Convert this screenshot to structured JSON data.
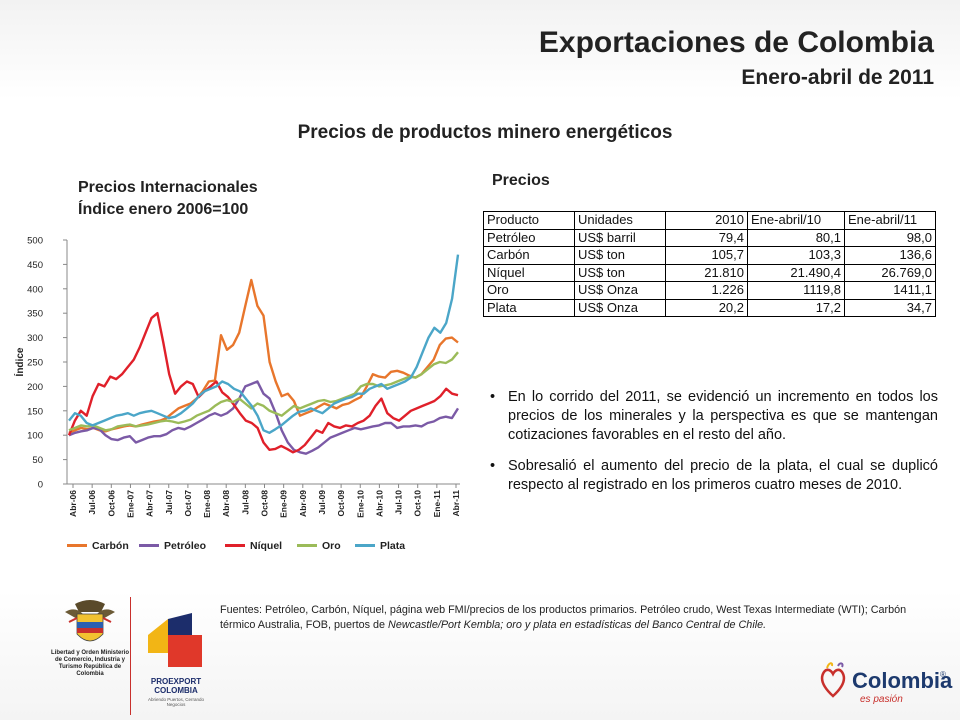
{
  "header": {
    "title": "Exportaciones de Colombia",
    "subtitle": "Enero-abril de 2011",
    "section_title": "Precios de productos minero energéticos"
  },
  "chart_data": {
    "type": "line",
    "title": "Precios Internacionales\nÍndice enero 2006=100",
    "title_lines": [
      "Precios Internacionales",
      "Índice enero 2006=100"
    ],
    "ylabel": "Índice",
    "xlabel": "",
    "ylim": [
      0,
      500
    ],
    "yticks": [
      0,
      50,
      100,
      150,
      200,
      250,
      300,
      350,
      400,
      450,
      500
    ],
    "x_tick_labels": [
      "Abr-06",
      "Jul-06",
      "Oct-06",
      "Ene-07",
      "Abr-07",
      "Jul-07",
      "Oct-07",
      "Ene-08",
      "Abr-08",
      "Jul-08",
      "Oct-08",
      "Ene-09",
      "Abr-09",
      "Jul-09",
      "Oct-09",
      "Ene-10",
      "Abr-10",
      "Jul-10",
      "Oct-10",
      "Ene-11",
      "Abr-11"
    ],
    "legend_position": "bottom",
    "grid": false,
    "series": [
      {
        "name": "Carbón",
        "color": "#e8762c",
        "values": [
          105,
          110,
          115,
          112,
          115,
          110,
          108,
          112,
          115,
          118,
          120,
          118,
          122,
          125,
          128,
          130,
          135,
          145,
          155,
          160,
          165,
          175,
          190,
          210,
          212,
          305,
          275,
          285,
          310,
          365,
          418,
          365,
          345,
          250,
          210,
          180,
          185,
          170,
          140,
          145,
          150,
          158,
          165,
          160,
          155,
          162,
          165,
          172,
          178,
          200,
          225,
          220,
          218,
          230,
          232,
          228,
          222,
          218,
          225,
          240,
          255,
          285,
          298,
          300,
          290
        ]
      },
      {
        "name": "Petróleo",
        "color": "#7b5aa6",
        "values": [
          100,
          105,
          108,
          110,
          115,
          112,
          100,
          92,
          90,
          95,
          98,
          85,
          90,
          95,
          98,
          98,
          102,
          110,
          115,
          112,
          118,
          125,
          132,
          140,
          145,
          140,
          145,
          155,
          175,
          200,
          205,
          210,
          185,
          175,
          145,
          110,
          85,
          70,
          65,
          62,
          68,
          75,
          85,
          95,
          100,
          105,
          110,
          115,
          112,
          115,
          118,
          120,
          125,
          125,
          115,
          118,
          118,
          120,
          118,
          125,
          128,
          135,
          138,
          135,
          155
        ]
      },
      {
        "name": "Níquel",
        "color": "#e0202a",
        "values": [
          100,
          130,
          150,
          140,
          180,
          205,
          200,
          220,
          215,
          225,
          240,
          255,
          280,
          310,
          340,
          350,
          290,
          225,
          185,
          200,
          210,
          205,
          178,
          190,
          200,
          210,
          188,
          178,
          162,
          145,
          130,
          125,
          115,
          85,
          70,
          72,
          78,
          72,
          65,
          70,
          80,
          95,
          110,
          105,
          125,
          118,
          115,
          120,
          118,
          125,
          130,
          140,
          160,
          175,
          145,
          135,
          130,
          140,
          150,
          155,
          160,
          165,
          170,
          180,
          195,
          185,
          182
        ]
      },
      {
        "name": "Oro",
        "color": "#9bbb59",
        "values": [
          110,
          115,
          120,
          118,
          120,
          115,
          110,
          112,
          118,
          120,
          122,
          118,
          120,
          122,
          125,
          128,
          130,
          128,
          125,
          128,
          132,
          140,
          145,
          150,
          160,
          168,
          172,
          168,
          175,
          165,
          155,
          165,
          160,
          150,
          145,
          140,
          150,
          160,
          155,
          160,
          165,
          170,
          172,
          168,
          170,
          175,
          180,
          185,
          200,
          205,
          205,
          200,
          202,
          205,
          210,
          215,
          220,
          218,
          225,
          235,
          245,
          250,
          248,
          255,
          270
        ]
      },
      {
        "name": "Plata",
        "color": "#4ba6c8",
        "values": [
          130,
          145,
          140,
          125,
          120,
          125,
          130,
          135,
          140,
          142,
          145,
          140,
          145,
          148,
          150,
          145,
          140,
          135,
          138,
          145,
          155,
          165,
          180,
          190,
          195,
          200,
          210,
          205,
          195,
          190,
          175,
          160,
          140,
          110,
          105,
          112,
          120,
          130,
          140,
          148,
          150,
          155,
          150,
          145,
          155,
          165,
          170,
          175,
          178,
          185,
          185,
          195,
          200,
          205,
          195,
          200,
          205,
          210,
          218,
          240,
          270,
          300,
          320,
          310,
          330,
          380,
          470
        ]
      }
    ]
  },
  "prices": {
    "title": "Precios",
    "headers": [
      "Producto",
      "Unidades",
      "2010",
      "Ene-abril/10",
      "Ene-abril/11"
    ],
    "rows": [
      [
        "Petróleo",
        "US$ barril",
        "79,4",
        "80,1",
        "98,0"
      ],
      [
        "Carbón",
        "US$ ton",
        "105,7",
        "103,3",
        "136,6"
      ],
      [
        "Níquel",
        "US$ ton",
        "21.810",
        "21.490,4",
        "26.769,0"
      ],
      [
        "Oro",
        "US$ Onza",
        "1.226",
        "1119,8",
        "1411,1"
      ],
      [
        "Plata",
        "US$ Onza",
        "20,2",
        "17,2",
        "34,7"
      ]
    ]
  },
  "bullets": [
    "En lo corrido del 2011, se evidenció un incremento en todos los precios de los minerales y la perspectiva es que se mantengan cotizaciones favorables en el resto del año.",
    "Sobresalió el aumento del precio de la plata, el cual se duplicó respecto al registrado en los primeros cuatro meses de 2010."
  ],
  "footnote": {
    "normal": "Fuentes: Petróleo, Carbón, Níquel, página web FMI/precios de los productos primarios. Petróleo crudo, West Texas Intermediate (WTI); Carbón térmico Australia, FOB, puertos de ",
    "italic": "Newcastle/Port Kembla; oro y plata en estadísticas del Banco Central de Chile."
  },
  "logos": {
    "ministry_text": "Libertad y Orden Ministerio de Comercio, Industria y Turismo República de Colombia",
    "proexport_name": "PROEXPORT COLOMBIA",
    "proexport_tag": "Abriendo Puertos, Cerrando Negocios",
    "colombia_word": "Colombia",
    "colombia_reg": "®",
    "colombia_tag": "es pasión"
  },
  "colors": {
    "title": "#222222",
    "accent_red": "#c8302c",
    "brand_blue": "#1d3a6e"
  }
}
